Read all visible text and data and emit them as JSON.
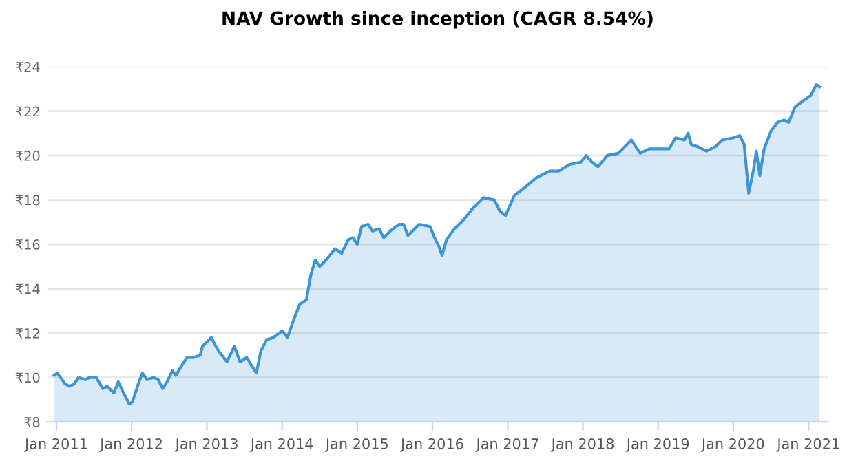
{
  "chart_data": {
    "type": "area",
    "title": "NAV Growth since inception (CAGR 8.54%)",
    "x": [
      "2010-12-21",
      "2011-01-05",
      "2011-02-13",
      "2011-03-06",
      "2011-03-28",
      "2011-04-18",
      "2011-05-20",
      "2011-06-11",
      "2011-07-13",
      "2011-08-14",
      "2011-09-04",
      "2011-10-07",
      "2011-10-28",
      "2011-11-23",
      "2011-12-21",
      "2012-01-05",
      "2012-02-02",
      "2012-02-23",
      "2012-03-16",
      "2012-04-17",
      "2012-05-09",
      "2012-05-31",
      "2012-06-21",
      "2012-07-17",
      "2012-08-03",
      "2012-08-29",
      "2012-09-26",
      "2012-10-28",
      "2012-11-29",
      "2012-12-10",
      "2013-01-22",
      "2013-02-13",
      "2013-03-06",
      "2013-04-08",
      "2013-05-14",
      "2013-06-11",
      "2013-07-13",
      "2013-08-08",
      "2013-08-29",
      "2013-09-20",
      "2013-10-18",
      "2013-11-19",
      "2014-01-01",
      "2014-01-27",
      "2014-03-06",
      "2014-03-28",
      "2014-04-29",
      "2014-05-20",
      "2014-06-11",
      "2014-07-02",
      "2014-08-03",
      "2014-09-15",
      "2014-10-17",
      "2014-11-18",
      "2014-12-10",
      "2015-01-01",
      "2015-01-22",
      "2015-02-23",
      "2015-03-16",
      "2015-04-17",
      "2015-05-09",
      "2015-06-10",
      "2015-07-23",
      "2015-08-14",
      "2015-09-04",
      "2015-10-28",
      "2015-12-21",
      "2016-01-11",
      "2016-02-02",
      "2016-02-17",
      "2016-03-09",
      "2016-04-17",
      "2016-05-31",
      "2016-07-13",
      "2016-09-04",
      "2016-10-28",
      "2016-11-23",
      "2016-12-21",
      "2017-02-02",
      "2017-03-16",
      "2017-05-20",
      "2017-07-23",
      "2017-09-04",
      "2017-10-28",
      "2017-12-21",
      "2018-01-18",
      "2018-02-13",
      "2018-03-16",
      "2018-04-28",
      "2018-06-21",
      "2018-08-24",
      "2018-10-06",
      "2018-11-19",
      "2019-01-22",
      "2019-02-23",
      "2019-03-27",
      "2019-05-09",
      "2019-05-27",
      "2019-06-11",
      "2019-07-13",
      "2019-08-24",
      "2019-10-06",
      "2019-11-08",
      "2020-01-01",
      "2020-02-02",
      "2020-02-23",
      "2020-03-16",
      "2020-04-07",
      "2020-04-22",
      "2020-05-09",
      "2020-05-30",
      "2020-07-02",
      "2020-08-03",
      "2020-09-04",
      "2020-09-26",
      "2020-10-28",
      "2020-12-10",
      "2021-01-11",
      "2021-01-22",
      "2021-02-08",
      "2021-02-23"
    ],
    "series": [
      {
        "color": "#3d95d5",
        "values": [
          10.1,
          10.2,
          9.7,
          9.6,
          9.7,
          10.0,
          9.9,
          10.0,
          10.0,
          9.5,
          9.6,
          9.3,
          9.8,
          9.3,
          8.8,
          8.9,
          9.7,
          10.2,
          9.9,
          10.0,
          9.9,
          9.5,
          9.8,
          10.3,
          10.1,
          10.5,
          10.9,
          10.9,
          11.0,
          11.4,
          11.8,
          11.4,
          11.1,
          10.7,
          11.4,
          10.7,
          10.9,
          10.5,
          10.2,
          11.2,
          11.7,
          11.8,
          12.1,
          11.8,
          12.8,
          13.3,
          13.5,
          14.6,
          15.3,
          15.0,
          15.3,
          15.8,
          15.6,
          16.2,
          16.3,
          16.0,
          16.8,
          16.9,
          16.6,
          16.7,
          16.3,
          16.6,
          16.9,
          16.9,
          16.4,
          16.9,
          16.8,
          16.3,
          15.9,
          15.5,
          16.2,
          16.7,
          17.1,
          17.6,
          18.1,
          18.0,
          17.5,
          17.3,
          18.2,
          18.5,
          19.0,
          19.3,
          19.3,
          19.6,
          19.7,
          20.0,
          19.7,
          19.5,
          20.0,
          20.1,
          20.7,
          20.1,
          20.3,
          20.3,
          20.3,
          20.8,
          20.7,
          21.0,
          20.5,
          20.4,
          20.2,
          20.4,
          20.7,
          20.8,
          20.9,
          20.5,
          18.3,
          19.3,
          20.2,
          19.1,
          20.3,
          21.1,
          21.5,
          21.6,
          21.5,
          22.2,
          22.5,
          22.7,
          22.9,
          23.2,
          23.1
        ]
      }
    ],
    "xlim": [
      "2010-11-17",
      "2021-04-05"
    ],
    "xticks": [
      {
        "value": "2011-01",
        "label": "Jan 2011"
      },
      {
        "value": "2012-01",
        "label": "Jan 2012"
      },
      {
        "value": "2013-01",
        "label": "Jan 2013"
      },
      {
        "value": "2014-01",
        "label": "Jan 2014"
      },
      {
        "value": "2015-01",
        "label": "Jan 2015"
      },
      {
        "value": "2016-01",
        "label": "Jan 2016"
      },
      {
        "value": "2017-01",
        "label": "Jan 2017"
      },
      {
        "value": "2018-01",
        "label": "Jan 2018"
      },
      {
        "value": "2019-01",
        "label": "Jan 2019"
      },
      {
        "value": "2020-01",
        "label": "Jan 2020"
      },
      {
        "value": "2021-01",
        "label": "Jan 2021"
      }
    ],
    "ylim": [
      8,
      24
    ],
    "yticks": [
      {
        "value": 8,
        "label": "₹8"
      },
      {
        "value": 10,
        "label": "₹10"
      },
      {
        "value": 12,
        "label": "₹12"
      },
      {
        "value": 14,
        "label": "₹14"
      },
      {
        "value": 16,
        "label": "₹16"
      },
      {
        "value": 18,
        "label": "₹18"
      },
      {
        "value": 20,
        "label": "₹20"
      },
      {
        "value": 22,
        "label": "₹22"
      },
      {
        "value": 24,
        "label": "₹24"
      }
    ],
    "grid": "y"
  }
}
